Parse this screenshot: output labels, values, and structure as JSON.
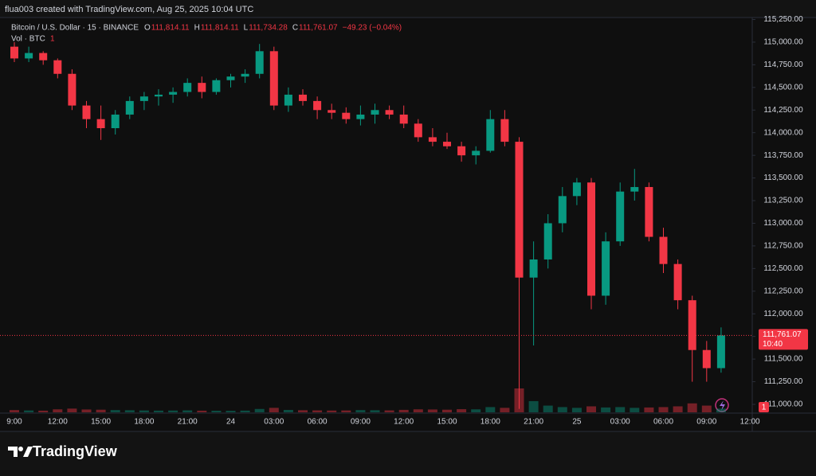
{
  "header": {
    "credit": "flua003 created with TradingView.com, Aug 25, 2025 10:04 UTC",
    "symbol": "Bitcoin / U.S. Dollar · 15 · BINANCE",
    "ohlc": [
      {
        "key": "O",
        "text": "111,814.11"
      },
      {
        "key": "H",
        "text": "111,814.11"
      },
      {
        "key": "L",
        "text": "111,734.28"
      },
      {
        "key": "C",
        "text": "111,761.07"
      }
    ],
    "change": "−49.23 (−0.04%)",
    "volume_label": "Vol · BTC",
    "volume_value": "1"
  },
  "chart_data": {
    "type": "candlestick",
    "categories": [
      "9:00",
      null,
      null,
      "12:00",
      null,
      null,
      "15:00",
      null,
      null,
      "18:00",
      null,
      null,
      "21:00",
      null,
      null,
      "24",
      null,
      null,
      "03:00",
      null,
      null,
      "06:00",
      null,
      null,
      "09:00",
      null,
      null,
      "12:00",
      null,
      null,
      "15:00",
      null,
      null,
      "18:00",
      null,
      null,
      "21:00",
      null,
      null,
      "25",
      null,
      null,
      "03:00",
      null,
      null,
      "06:00",
      null,
      null,
      "09:00",
      null,
      null,
      "12:00"
    ],
    "open": [
      114950,
      114820,
      114880,
      114800,
      114650,
      114300,
      114150,
      114050,
      114200,
      114350,
      114400,
      114420,
      114450,
      114550,
      114450,
      114580,
      114620,
      114650,
      114900,
      114300,
      114420,
      114350,
      114250,
      114220,
      114150,
      114200,
      114250,
      114200,
      114100,
      113950,
      113900,
      113850,
      113750,
      113800,
      114150,
      113900,
      112400,
      112600,
      113000,
      113300,
      113450,
      112200,
      112800,
      113350,
      113400,
      112850,
      112550,
      112150,
      111600,
      111400,
      null,
      null
    ],
    "high": [
      115000,
      114950,
      114900,
      114820,
      114700,
      114350,
      114300,
      114250,
      114400,
      114450,
      114480,
      114500,
      114600,
      114620,
      114600,
      114650,
      114700,
      114980,
      114950,
      114500,
      114480,
      114400,
      114320,
      114280,
      114300,
      114320,
      114300,
      114300,
      114150,
      114050,
      114000,
      113900,
      113850,
      114250,
      114250,
      113950,
      112800,
      113100,
      113400,
      113500,
      113500,
      112900,
      113450,
      113600,
      113450,
      112950,
      112600,
      112200,
      111700,
      111850,
      null,
      null
    ],
    "low": [
      114780,
      114780,
      114750,
      114600,
      114250,
      114050,
      113920,
      113980,
      114150,
      114250,
      114300,
      114330,
      114400,
      114380,
      114420,
      114500,
      114550,
      114600,
      114250,
      114230,
      114300,
      114150,
      114150,
      114100,
      114080,
      114100,
      114150,
      114050,
      113900,
      113850,
      113820,
      113680,
      113650,
      113780,
      113850,
      110950,
      111650,
      112500,
      112900,
      113200,
      112050,
      112100,
      112750,
      113250,
      112800,
      112450,
      112050,
      111250,
      111250,
      111350,
      null,
      null
    ],
    "close": [
      114820,
      114880,
      114800,
      114650,
      114300,
      114150,
      114050,
      114200,
      114350,
      114400,
      114420,
      114450,
      114550,
      114450,
      114580,
      114620,
      114650,
      114900,
      114300,
      114420,
      114350,
      114250,
      114220,
      114150,
      114200,
      114250,
      114200,
      114100,
      113950,
      113900,
      113850,
      113750,
      113800,
      114150,
      113900,
      112400,
      112600,
      113000,
      113300,
      113450,
      112200,
      112800,
      113350,
      113400,
      112850,
      112550,
      112150,
      111600,
      111400,
      111761.07,
      null,
      null
    ],
    "volume": [
      300,
      250,
      220,
      400,
      500,
      380,
      350,
      300,
      280,
      250,
      230,
      240,
      260,
      220,
      210,
      200,
      230,
      450,
      600,
      320,
      280,
      260,
      240,
      250,
      300,
      280,
      260,
      330,
      400,
      380,
      350,
      420,
      400,
      700,
      600,
      3200,
      1500,
      900,
      700,
      600,
      800,
      650,
      700,
      600,
      650,
      700,
      800,
      1200,
      900,
      500,
      null,
      null
    ],
    "up_color": "#089981",
    "down_color": "#f23645",
    "ylim": [
      110912,
      115272
    ],
    "yticks": [
      {
        "value": 111000,
        "label": "111,000.00"
      },
      {
        "value": 111250,
        "label": "111,250.00"
      },
      {
        "value": 111500,
        "label": "111,500.00"
      },
      {
        "value": 111750,
        "label": "111,750.00"
      },
      {
        "value": 112000,
        "label": "112,000.00"
      },
      {
        "value": 112250,
        "label": "112,250.00"
      },
      {
        "value": 112500,
        "label": "112,500.00"
      },
      {
        "value": 112750,
        "label": "112,750.00"
      },
      {
        "value": 113000,
        "label": "113,000.00"
      },
      {
        "value": 113250,
        "label": "113,250.00"
      },
      {
        "value": 113500,
        "label": "113,500.00"
      },
      {
        "value": 113750,
        "label": "113,750.00"
      },
      {
        "value": 114000,
        "label": "114,000.00"
      },
      {
        "value": 114250,
        "label": "114,250.00"
      },
      {
        "value": 114500,
        "label": "114,500.00"
      },
      {
        "value": 114750,
        "label": "114,750.00"
      },
      {
        "value": 115000,
        "label": "115,000.00"
      },
      {
        "value": 115250,
        "label": "115,250.00"
      }
    ],
    "last_price": {
      "value": 111761.07,
      "label": "111,761.07"
    },
    "countdown": "10:40",
    "grid": false
  },
  "footer": {
    "brand": "TradingView"
  }
}
